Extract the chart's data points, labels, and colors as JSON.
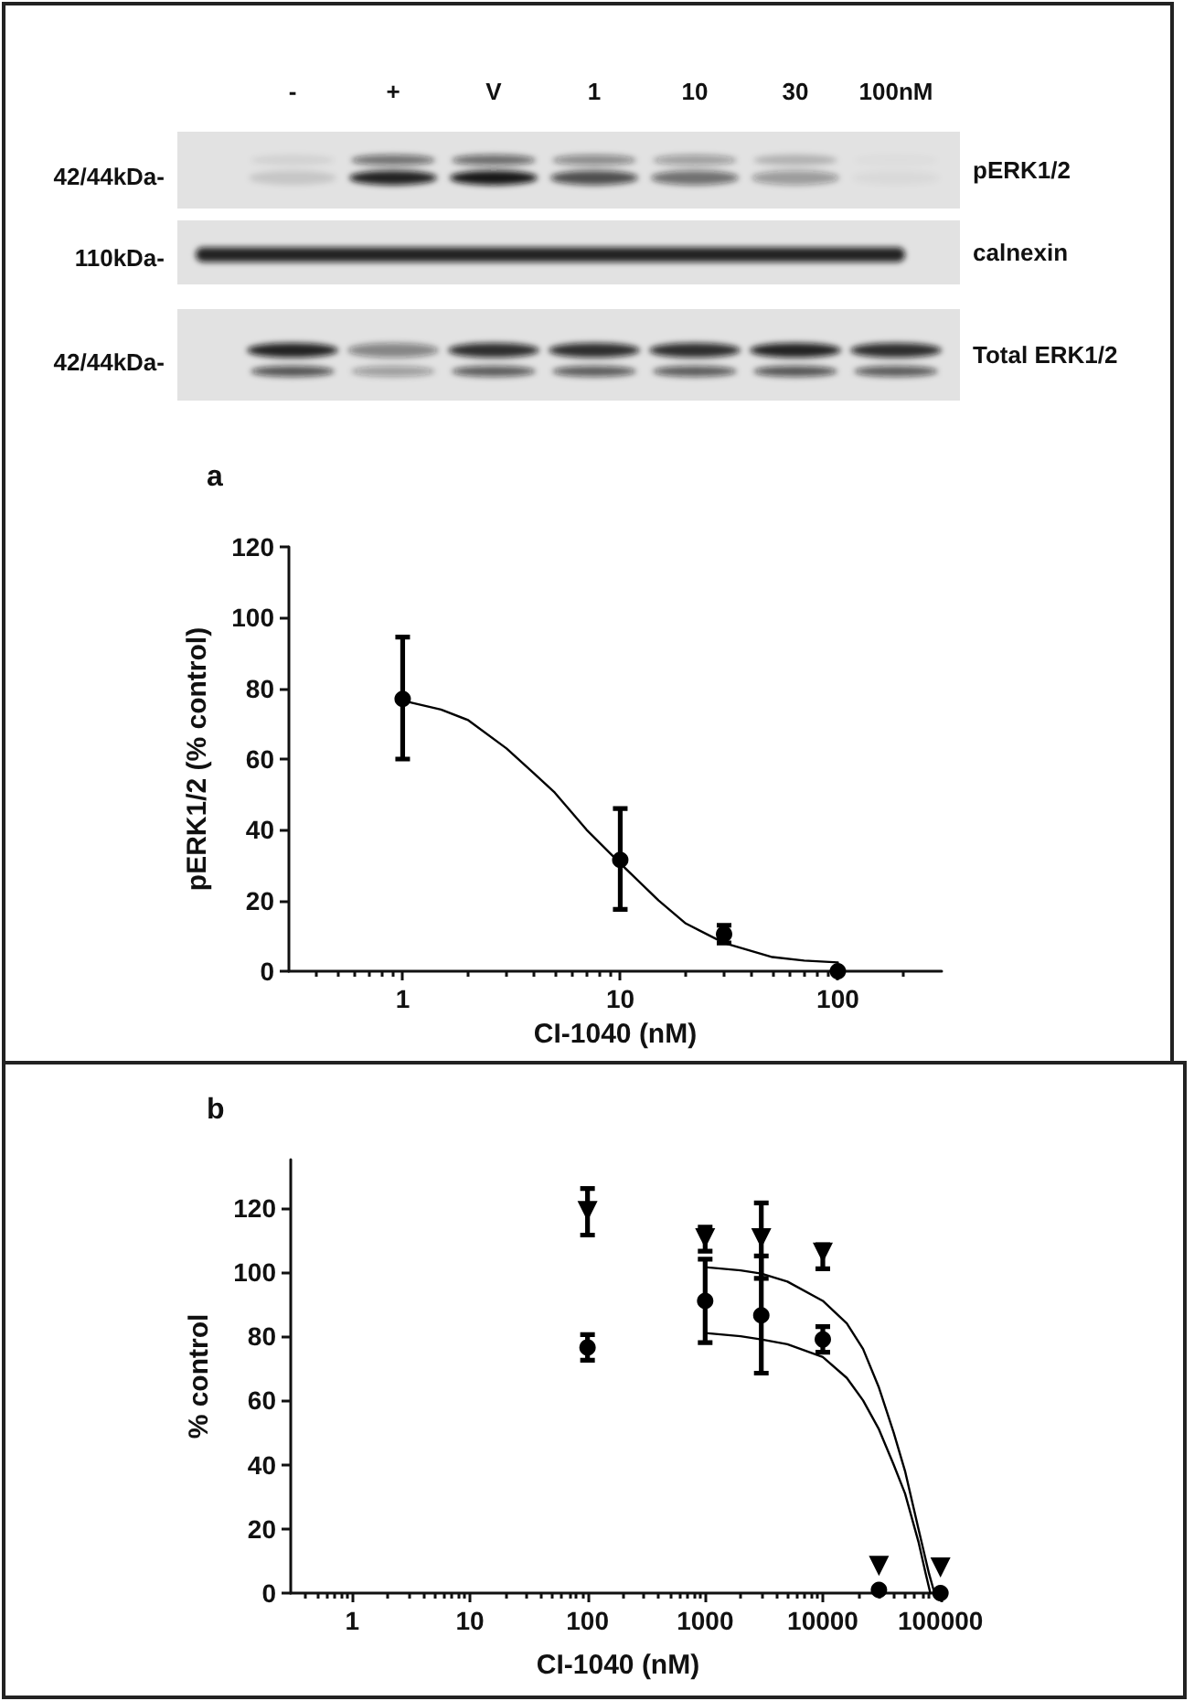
{
  "chart_data": [
    {
      "type": "other",
      "categories": [
        "-",
        "+",
        "V",
        "1",
        "10",
        "30",
        "100nM"
      ],
      "annotations": [
        "42/44kDa-",
        "110kDa-",
        "42/44kDa-",
        "pERK1/2",
        "calnexin",
        "Total ERK1/2"
      ]
    },
    {
      "type": "scatter",
      "title": "a",
      "xlabel": "CI-1040 (nM)",
      "ylabel": "pERK1/2 (% control)",
      "log": "x",
      "xlim": [
        0.3,
        300
      ],
      "xticks": [
        {
          "value": 0.4,
          "label": null
        },
        {
          "value": 0.5,
          "label": null
        },
        {
          "value": 0.6,
          "label": null
        },
        {
          "value": 0.7,
          "label": null
        },
        {
          "value": 0.8,
          "label": null
        },
        {
          "value": 0.9,
          "label": null
        },
        1,
        {
          "value": 2,
          "label": null
        },
        {
          "value": 3,
          "label": null
        },
        {
          "value": 4,
          "label": null
        },
        {
          "value": 5,
          "label": null
        },
        {
          "value": 6,
          "label": null
        },
        {
          "value": 7,
          "label": null
        },
        {
          "value": 8,
          "label": null
        },
        {
          "value": 9,
          "label": null
        },
        10,
        {
          "value": 20,
          "label": null
        },
        {
          "value": 30,
          "label": null
        },
        {
          "value": 40,
          "label": null
        },
        {
          "value": 50,
          "label": null
        },
        {
          "value": 60,
          "label": null
        },
        {
          "value": 70,
          "label": null
        },
        {
          "value": 80,
          "label": null
        },
        {
          "value": 90,
          "label": null
        },
        100,
        {
          "value": 200,
          "label": null
        }
      ],
      "ylim": [
        0,
        120
      ],
      "yticks": [
        0,
        20,
        40,
        60,
        80,
        100,
        120
      ],
      "series": [
        {
          "type": "line",
          "color": "#000000",
          "marker": "none",
          "x": [
            1,
            1.5,
            2,
            3,
            4,
            5,
            7,
            10,
            15,
            20,
            30,
            50,
            70,
            100
          ],
          "values": [
            76.5,
            74,
            71,
            63,
            56,
            50.5,
            40,
            30.5,
            20,
            13.5,
            8,
            4,
            3,
            2.5
          ]
        },
        {
          "type": "scatter",
          "color": "#000000",
          "marker": "circle",
          "x": [
            1,
            10,
            30,
            100
          ],
          "values": [
            77,
            31.5,
            10.5,
            0
          ],
          "errors": [
            [
              60,
              94.5
            ],
            [
              17.5,
              46
            ],
            [
              8,
              13
            ],
            null
          ]
        }
      ]
    },
    {
      "type": "scatter",
      "title": "b",
      "xlabel": "CI-1040 (nM)",
      "ylabel": "% control",
      "log": "x",
      "xlim": [
        0.3,
        110000
      ],
      "xticks": [
        {
          "value": 0.4,
          "label": null
        },
        {
          "value": 0.5,
          "label": null
        },
        {
          "value": 0.6,
          "label": null
        },
        {
          "value": 0.7,
          "label": null
        },
        {
          "value": 0.8,
          "label": null
        },
        {
          "value": 0.9,
          "label": null
        },
        1,
        {
          "value": 2,
          "label": null
        },
        {
          "value": 3,
          "label": null
        },
        {
          "value": 4,
          "label": null
        },
        {
          "value": 5,
          "label": null
        },
        {
          "value": 6,
          "label": null
        },
        {
          "value": 7,
          "label": null
        },
        {
          "value": 8,
          "label": null
        },
        {
          "value": 9,
          "label": null
        },
        10,
        {
          "value": 20,
          "label": null
        },
        {
          "value": 30,
          "label": null
        },
        {
          "value": 40,
          "label": null
        },
        {
          "value": 50,
          "label": null
        },
        {
          "value": 60,
          "label": null
        },
        {
          "value": 70,
          "label": null
        },
        {
          "value": 80,
          "label": null
        },
        {
          "value": 90,
          "label": null
        },
        100,
        {
          "value": 200,
          "label": null
        },
        {
          "value": 300,
          "label": null
        },
        {
          "value": 400,
          "label": null
        },
        {
          "value": 500,
          "label": null
        },
        {
          "value": 600,
          "label": null
        },
        {
          "value": 700,
          "label": null
        },
        {
          "value": 800,
          "label": null
        },
        {
          "value": 900,
          "label": null
        },
        1000,
        {
          "value": 2000,
          "label": null
        },
        {
          "value": 3000,
          "label": null
        },
        {
          "value": 4000,
          "label": null
        },
        {
          "value": 5000,
          "label": null
        },
        {
          "value": 6000,
          "label": null
        },
        {
          "value": 7000,
          "label": null
        },
        {
          "value": 8000,
          "label": null
        },
        {
          "value": 9000,
          "label": null
        },
        10000,
        {
          "value": 20000,
          "label": null
        },
        {
          "value": 30000,
          "label": null
        },
        {
          "value": 40000,
          "label": null
        },
        {
          "value": 50000,
          "label": null
        },
        {
          "value": 60000,
          "label": null
        },
        {
          "value": 70000,
          "label": null
        },
        {
          "value": 80000,
          "label": null
        },
        {
          "value": 90000,
          "label": null
        },
        100000
      ],
      "ylim": [
        0,
        135
      ],
      "yticks": [
        0,
        20,
        40,
        60,
        80,
        100,
        120
      ],
      "series": [
        {
          "type": "line",
          "color": "#000000",
          "marker": "none",
          "x": [
            1000,
            2000,
            3000,
            5000,
            10000,
            16000,
            22000,
            30000,
            40000,
            50000,
            65000,
            80000,
            89000
          ],
          "values": [
            101.5,
            100.5,
            99.5,
            97,
            91,
            84,
            76,
            64,
            50,
            38,
            20,
            6,
            0
          ]
        },
        {
          "type": "line",
          "color": "#000000",
          "marker": "none",
          "x": [
            1000,
            2000,
            3000,
            5000,
            10000,
            16000,
            22000,
            30000,
            40000,
            50000,
            65000,
            75000,
            82000
          ],
          "values": [
            81,
            80,
            79,
            77.5,
            73.5,
            67,
            60,
            51,
            40,
            31,
            16,
            6,
            0
          ]
        },
        {
          "type": "scatter",
          "color": "#000000",
          "marker": "triangle",
          "x": [
            100,
            1000,
            3000,
            10000,
            30000,
            100000
          ],
          "values": [
            119,
            110.5,
            110.5,
            106,
            8.5,
            8
          ],
          "errors": [
            [
              111.5,
              126
            ],
            [
              106.5,
              114
            ],
            [
              98,
              121.5
            ],
            [
              101,
              108.5
            ],
            null,
            null
          ]
        },
        {
          "type": "scatter",
          "color": "#000000",
          "marker": "circle",
          "x": [
            100,
            1000,
            3000,
            10000,
            30000,
            100000
          ],
          "values": [
            76.5,
            91,
            86.5,
            79,
            1,
            0
          ],
          "errors": [
            [
              72.5,
              80.5
            ],
            [
              78,
              104
            ],
            [
              68.5,
              105
            ],
            [
              75,
              83
            ],
            null,
            null
          ]
        }
      ]
    }
  ]
}
